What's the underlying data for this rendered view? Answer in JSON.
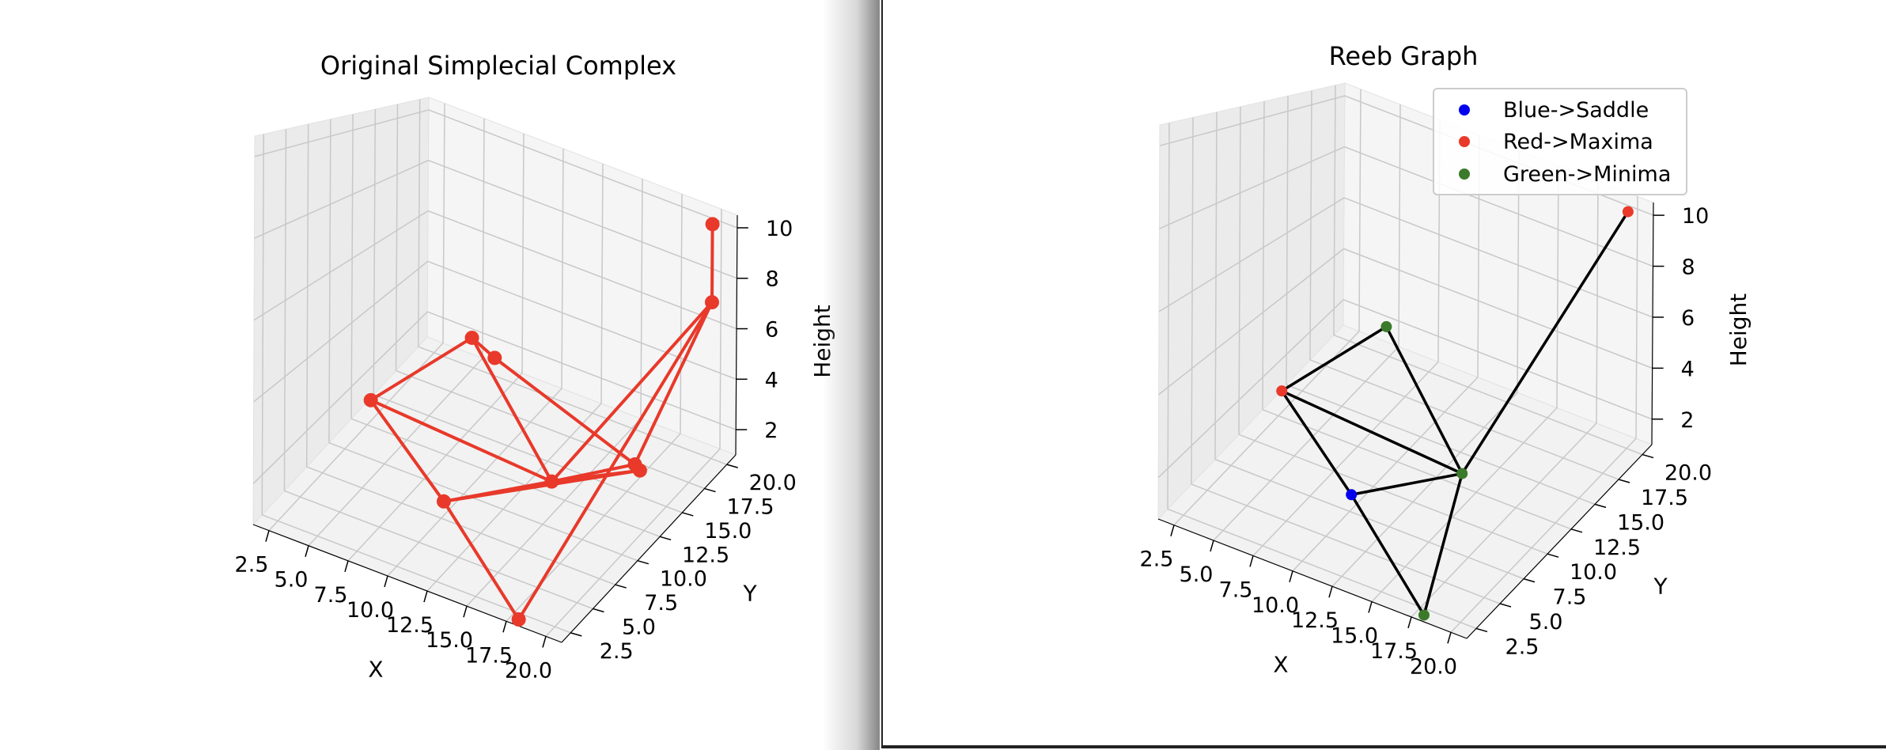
{
  "chart_data": [
    {
      "type": "scatter3d",
      "title": "Original Simplecial Complex",
      "xlabel": "X",
      "ylabel": "Y",
      "zlabel": "Height",
      "xlim": [
        1.5,
        21
      ],
      "ylim": [
        1.5,
        21
      ],
      "zlim": [
        1,
        10.5
      ],
      "x_ticks": [
        "2.5",
        "5.0",
        "7.5",
        "10.0",
        "12.5",
        "15.0",
        "17.5",
        "20.0"
      ],
      "y_ticks": [
        "2.5",
        "5.0",
        "7.5",
        "10.0",
        "12.5",
        "15.0",
        "17.5",
        "20.0"
      ],
      "z_ticks": [
        "2",
        "4",
        "6",
        "8",
        "10"
      ],
      "grid": true,
      "color": "#e8392a",
      "points": [
        {
          "x": 3,
          "y": 12,
          "z": 2
        },
        {
          "x": 6,
          "y": 18,
          "z": 3
        },
        {
          "x": 8,
          "y": 17,
          "z": 3
        },
        {
          "x": 11,
          "y": 6,
          "z": 2
        },
        {
          "x": 15,
          "y": 11,
          "z": 2
        },
        {
          "x": 18,
          "y": 2,
          "z": 1
        },
        {
          "x": 18,
          "y": 15,
          "z": 2
        },
        {
          "x": 20,
          "y": 12,
          "z": 3
        },
        {
          "x": 20,
          "y": 20,
          "z": 7
        },
        {
          "x": 20,
          "y": 20,
          "z": 10
        }
      ],
      "edges": [
        [
          0,
          1
        ],
        [
          0,
          4
        ],
        [
          0,
          3
        ],
        [
          1,
          2
        ],
        [
          2,
          6
        ],
        [
          1,
          4
        ],
        [
          3,
          4
        ],
        [
          3,
          5
        ],
        [
          3,
          7
        ],
        [
          4,
          6
        ],
        [
          4,
          7
        ],
        [
          4,
          8
        ],
        [
          5,
          8
        ],
        [
          6,
          8
        ],
        [
          8,
          9
        ]
      ]
    },
    {
      "type": "scatter3d",
      "title": "Reeb Graph",
      "xlabel": "X",
      "ylabel": "Y",
      "zlabel": "Height",
      "xlim": [
        1.5,
        21
      ],
      "ylim": [
        1.5,
        21
      ],
      "zlim": [
        1,
        10.5
      ],
      "x_ticks": [
        "2.5",
        "5.0",
        "7.5",
        "10.0",
        "12.5",
        "15.0",
        "17.5",
        "20.0"
      ],
      "y_ticks": [
        "2.5",
        "5.0",
        "7.5",
        "10.0",
        "12.5",
        "15.0",
        "17.5",
        "20.0"
      ],
      "z_ticks": [
        "2",
        "4",
        "6",
        "8",
        "10"
      ],
      "grid": true,
      "legend_position": "top-right",
      "series": [
        {
          "name": "Blue->Saddle",
          "color": "#0000ee"
        },
        {
          "name": "Red->Maxima",
          "color": "#e8392a"
        },
        {
          "name": "Green->Minima",
          "color": "#3a7a2a"
        }
      ],
      "points": [
        {
          "x": 3,
          "y": 12,
          "z": 2,
          "kind": 1
        },
        {
          "x": 6,
          "y": 18,
          "z": 3,
          "kind": 2
        },
        {
          "x": 11,
          "y": 6,
          "z": 2,
          "kind": 0
        },
        {
          "x": 15,
          "y": 11,
          "z": 2,
          "kind": 2
        },
        {
          "x": 18,
          "y": 2,
          "z": 1,
          "kind": 2
        },
        {
          "x": 20,
          "y": 20,
          "z": 10,
          "kind": 1
        }
      ],
      "edges": [
        [
          0,
          1
        ],
        [
          0,
          3
        ],
        [
          0,
          2
        ],
        [
          1,
          3
        ],
        [
          2,
          3
        ],
        [
          2,
          4
        ],
        [
          3,
          4
        ],
        [
          3,
          5
        ]
      ],
      "edge_color": "#000000"
    }
  ]
}
